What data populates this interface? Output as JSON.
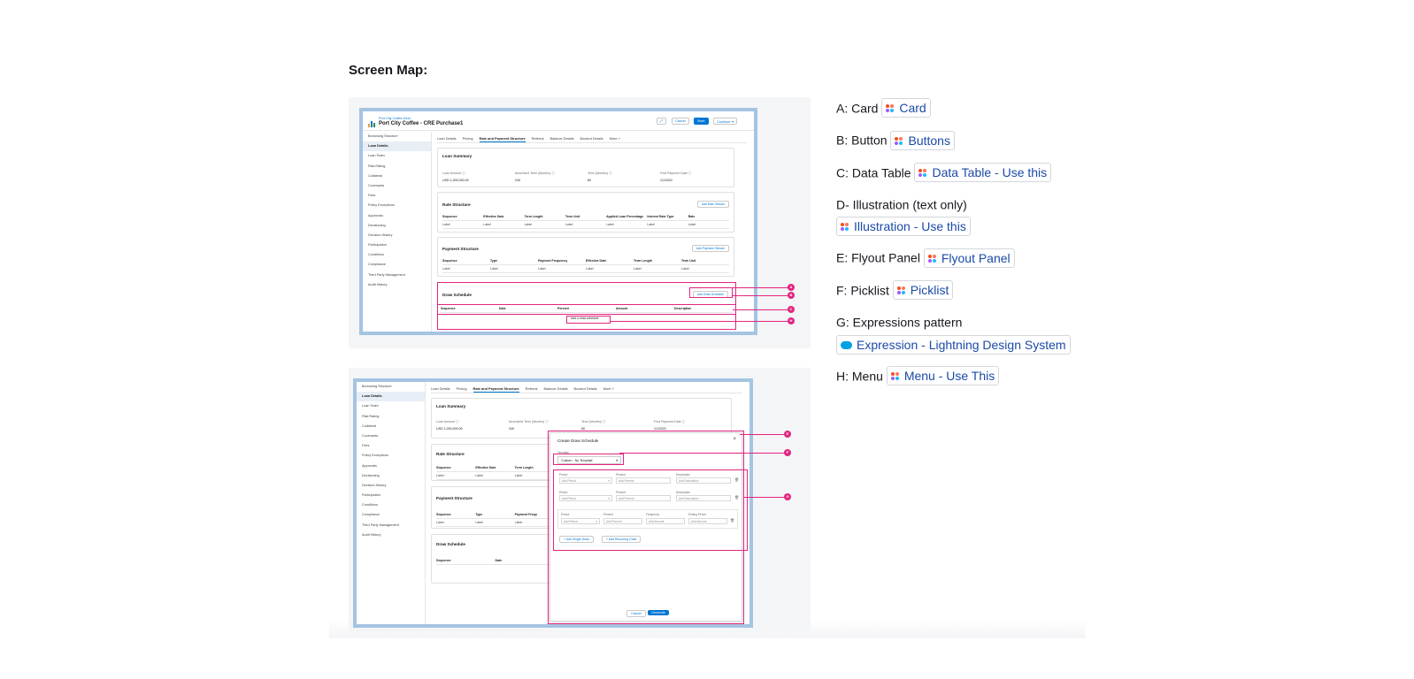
{
  "doc": {
    "title": "Screen Map:"
  },
  "app": {
    "deal_caption": "Port City Coffee Deal",
    "deal_name": "Port City Coffee - CRE Purchase1",
    "header_buttons": [
      "Cancel",
      "Save",
      "Continue"
    ],
    "sidebar": [
      "Borrowing Structure",
      "Loan Details",
      "Loan Team",
      "Risk Rating",
      "Collateral",
      "Covenants",
      "Fees",
      "Policy Exceptions",
      "Approvals",
      "Decisioning",
      "Decision History",
      "Participation",
      "Conditions",
      "Compliance",
      "Third Party Management",
      "Audit History"
    ],
    "tabs": [
      "Loan Details",
      "Pricing",
      "Rate and Payment Structure",
      "Referral",
      "Balance Details",
      "Booked Details",
      "More"
    ],
    "loan_summary": {
      "title": "Loan Summary",
      "fields": [
        {
          "label": "Loan Amount",
          "value": "USD 1,000,000.00"
        },
        {
          "label": "Amortized Term (Months)",
          "value": "240"
        },
        {
          "label": "Term (Months)",
          "value": "60"
        },
        {
          "label": "First Payment Date",
          "value": "1/1/2022"
        }
      ]
    },
    "rate_structure": {
      "title": "Rate Structure",
      "button": "Add Rate Stream",
      "columns": [
        "Sequence",
        "Effective Date",
        "Term Length",
        "Term Unit",
        "Applied Loan Percentage",
        "Interest Rate Type",
        "Rate"
      ],
      "row": [
        "Label",
        "Label",
        "Label",
        "Label",
        "Label",
        "Label",
        "Label"
      ]
    },
    "payment_structure": {
      "title": "Payment Structure",
      "button": "Add Payment Stream",
      "columns": [
        "Sequence",
        "Type",
        "Payment Frequency",
        "Effective Date",
        "Term Length",
        "Term Unit"
      ],
      "row": [
        "Label",
        "Label",
        "Label",
        "Label",
        "Label",
        "Label"
      ]
    },
    "draw_schedule": {
      "title": "Draw Schedule",
      "button": "Add Draw Schedule",
      "columns": [
        "Sequence",
        "Date",
        "Percent",
        "Amount",
        "Description"
      ],
      "empty_text": "Add a draw schedule",
      "bottom_columns": [
        "Sequence",
        "Date"
      ]
    },
    "bottom_rate_columns": [
      "Sequence",
      "Effective Date",
      "Term Length"
    ],
    "bottom_payment_columns": [
      "Sequence",
      "Type",
      "Payment Frequ"
    ],
    "modal": {
      "title": "Create Draw Schedule",
      "close": "×",
      "template_label": "Template",
      "template_value": "Custom - No Template",
      "row_labels": [
        "Period",
        "Percent",
        "Description"
      ],
      "row_placeholders": [
        "Add Period",
        "Add Percent",
        "Add Description"
      ],
      "recurring_labels": [
        "Period",
        "Percent",
        "Frequency",
        "Ending Period"
      ],
      "recurring_placeholders": [
        "Add Period",
        "Add Percent",
        "Add Amount",
        "Add Amount"
      ],
      "add_single": "+ Add Single Draw",
      "add_recurring": "+ Add Recurring Draw",
      "cancel": "Cancel",
      "generate": "Generate"
    },
    "callouts_top": [
      "A",
      "B",
      "C",
      "H"
    ],
    "callouts_bottom": [
      "E",
      "F",
      "G"
    ]
  },
  "legend": [
    {
      "label": "A: Card",
      "link": "Card",
      "icon": "figma-icon"
    },
    {
      "label": "B: Button",
      "link": "Buttons",
      "icon": "figma-icon"
    },
    {
      "label": "C: Data Table",
      "link": "Data Table - Use this",
      "icon": "figma-icon"
    },
    {
      "label": "D- Illustration (text only)",
      "link": "Illustration - Use this",
      "icon": "figma-icon"
    },
    {
      "label": "E: Flyout Panel",
      "link": "Flyout Panel",
      "icon": "figma-icon"
    },
    {
      "label": "F: Picklist",
      "link": "Picklist",
      "icon": "figma-icon"
    },
    {
      "label": "G: Expressions pattern",
      "link": "Expression - Lightning Design System",
      "icon": "salesforce-cloud-icon"
    },
    {
      "label": "H: Menu",
      "link": "Menu - Use This",
      "icon": "figma-icon"
    }
  ],
  "colors": {
    "accent": "#0176d3",
    "callout": "#e2257f",
    "frame": "#a5c4e2",
    "link": "#1b4aa8"
  }
}
